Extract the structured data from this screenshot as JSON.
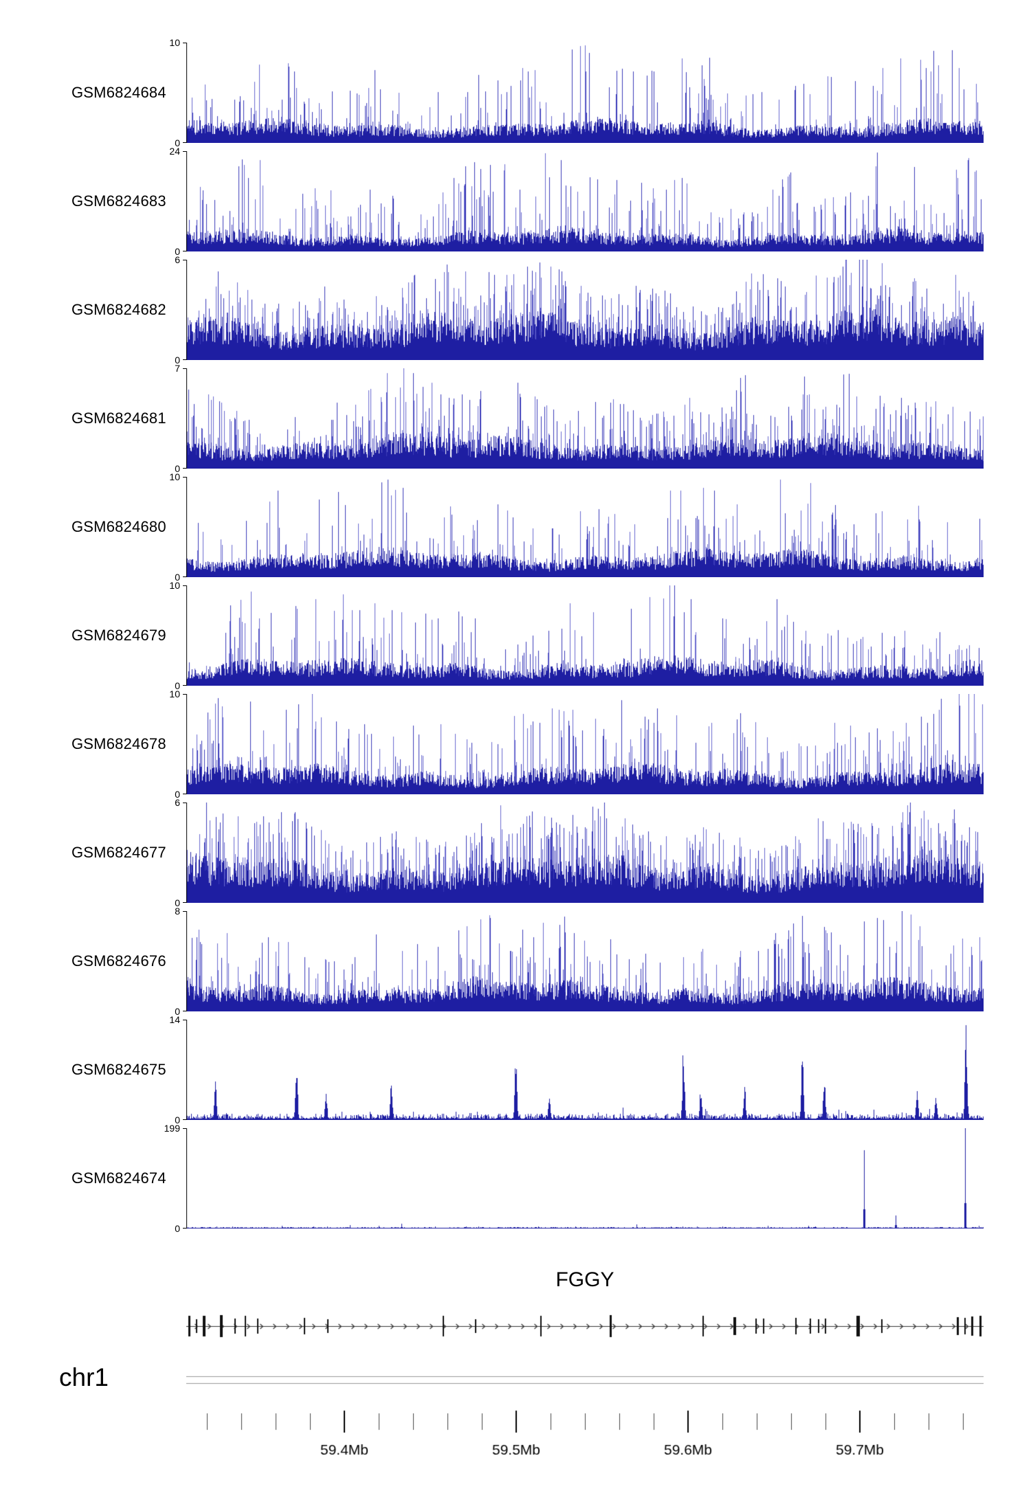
{
  "chart_data": {
    "type": "area",
    "subtype": "genome-coverage-tracks",
    "region": {
      "chromosome": "chr1",
      "start_mb": 59.308,
      "end_mb": 59.772
    },
    "signal_colors": {
      "dark": "#1e1ea2",
      "mid": "#3a3ab8",
      "light": "#6868cf"
    },
    "tracks": [
      {
        "label": "GSM6824684",
        "ymin": 0,
        "ymax": 10,
        "profile": "dense",
        "seed": 101,
        "base": 0.24,
        "spike_prob": 0.26,
        "spike_pow": 2.2
      },
      {
        "label": "GSM6824683",
        "ymin": 0,
        "ymax": 24,
        "profile": "dense",
        "seed": 102,
        "base": 0.22,
        "spike_prob": 0.3,
        "spike_pow": 2.3
      },
      {
        "label": "GSM6824682",
        "ymin": 0,
        "ymax": 6,
        "profile": "very-dense",
        "seed": 103,
        "base": 0.48,
        "spike_prob": 0.45,
        "spike_pow": 1.6
      },
      {
        "label": "GSM6824681",
        "ymin": 0,
        "ymax": 7,
        "profile": "dense",
        "seed": 104,
        "base": 0.34,
        "spike_prob": 0.35,
        "spike_pow": 1.8
      },
      {
        "label": "GSM6824680",
        "ymin": 0,
        "ymax": 10,
        "profile": "dense",
        "seed": 105,
        "base": 0.28,
        "spike_prob": 0.25,
        "spike_pow": 2.2
      },
      {
        "label": "GSM6824679",
        "ymin": 0,
        "ymax": 10,
        "profile": "dense",
        "seed": 106,
        "base": 0.28,
        "spike_prob": 0.25,
        "spike_pow": 2.2
      },
      {
        "label": "GSM6824678",
        "ymin": 0,
        "ymax": 10,
        "profile": "dense",
        "seed": 107,
        "base": 0.3,
        "spike_prob": 0.3,
        "spike_pow": 2.0
      },
      {
        "label": "GSM6824677",
        "ymin": 0,
        "ymax": 6,
        "profile": "very-dense",
        "seed": 108,
        "base": 0.48,
        "spike_prob": 0.45,
        "spike_pow": 1.6
      },
      {
        "label": "GSM6824676",
        "ymin": 0,
        "ymax": 8,
        "profile": "dense",
        "seed": 109,
        "base": 0.32,
        "spike_prob": 0.3,
        "spike_pow": 2.0
      },
      {
        "label": "GSM6824675",
        "ymin": 0,
        "ymax": 14,
        "profile": "sparse-spikes",
        "seed": 110,
        "base": 0.05,
        "spikes": [
          {
            "pos": 0.036,
            "h": 0.4
          },
          {
            "pos": 0.138,
            "h": 0.65
          },
          {
            "pos": 0.175,
            "h": 0.3
          },
          {
            "pos": 0.257,
            "h": 0.5
          },
          {
            "pos": 0.413,
            "h": 0.72
          },
          {
            "pos": 0.455,
            "h": 0.28
          },
          {
            "pos": 0.623,
            "h": 0.85
          },
          {
            "pos": 0.645,
            "h": 0.35
          },
          {
            "pos": 0.7,
            "h": 0.38
          },
          {
            "pos": 0.772,
            "h": 0.72
          },
          {
            "pos": 0.8,
            "h": 0.58
          },
          {
            "pos": 0.916,
            "h": 0.42
          },
          {
            "pos": 0.94,
            "h": 0.3
          },
          {
            "pos": 0.978,
            "h": 1.0
          }
        ]
      },
      {
        "label": "GSM6824674",
        "ymin": 0,
        "ymax": 199,
        "profile": "flat-spikes",
        "seed": 111,
        "base": 0.012,
        "spikes": [
          {
            "pos": 0.205,
            "h": 0.035
          },
          {
            "pos": 0.27,
            "h": 0.045
          },
          {
            "pos": 0.565,
            "h": 0.04
          },
          {
            "pos": 0.78,
            "h": 0.03
          },
          {
            "pos": 0.85,
            "h": 0.78
          },
          {
            "pos": 0.89,
            "h": 0.13
          },
          {
            "pos": 0.977,
            "h": 1.0
          }
        ]
      }
    ],
    "gene_track": {
      "name": "FGGY",
      "strand": "forward",
      "exons": [
        {
          "p": 0.004,
          "w": 3,
          "h": 30
        },
        {
          "p": 0.013,
          "w": 2,
          "h": 20
        },
        {
          "p": 0.022,
          "w": 4,
          "h": 30
        },
        {
          "p": 0.044,
          "w": 4,
          "h": 32
        },
        {
          "p": 0.061,
          "w": 2,
          "h": 22
        },
        {
          "p": 0.074,
          "w": 2,
          "h": 30
        },
        {
          "p": 0.09,
          "w": 2,
          "h": 22
        },
        {
          "p": 0.148,
          "w": 2,
          "h": 24
        },
        {
          "p": 0.178,
          "w": 2,
          "h": 20
        },
        {
          "p": 0.322,
          "w": 2,
          "h": 30
        },
        {
          "p": 0.363,
          "w": 2,
          "h": 20
        },
        {
          "p": 0.445,
          "w": 2,
          "h": 30
        },
        {
          "p": 0.532,
          "w": 3,
          "h": 32
        },
        {
          "p": 0.648,
          "w": 2,
          "h": 30
        },
        {
          "p": 0.688,
          "w": 4,
          "h": 26
        },
        {
          "p": 0.715,
          "w": 2,
          "h": 22
        },
        {
          "p": 0.724,
          "w": 2,
          "h": 22
        },
        {
          "p": 0.765,
          "w": 2,
          "h": 24
        },
        {
          "p": 0.783,
          "w": 2,
          "h": 22
        },
        {
          "p": 0.793,
          "w": 2,
          "h": 20
        },
        {
          "p": 0.802,
          "w": 2,
          "h": 22
        },
        {
          "p": 0.843,
          "w": 5,
          "h": 30
        },
        {
          "p": 0.872,
          "w": 2,
          "h": 20
        },
        {
          "p": 0.968,
          "w": 3,
          "h": 26
        },
        {
          "p": 0.977,
          "w": 2,
          "h": 24
        },
        {
          "p": 0.986,
          "w": 3,
          "h": 28
        },
        {
          "p": 0.996,
          "w": 3,
          "h": 30
        }
      ]
    },
    "axis": {
      "chromosome": "chr1",
      "minor_tick_interval_mb": 0.02,
      "major_ticks": [
        {
          "label": "59.4Mb",
          "mb": 59.4
        },
        {
          "label": "59.5Mb",
          "mb": 59.5
        },
        {
          "label": "59.6Mb",
          "mb": 59.6
        },
        {
          "label": "59.7Mb",
          "mb": 59.7
        }
      ]
    }
  }
}
